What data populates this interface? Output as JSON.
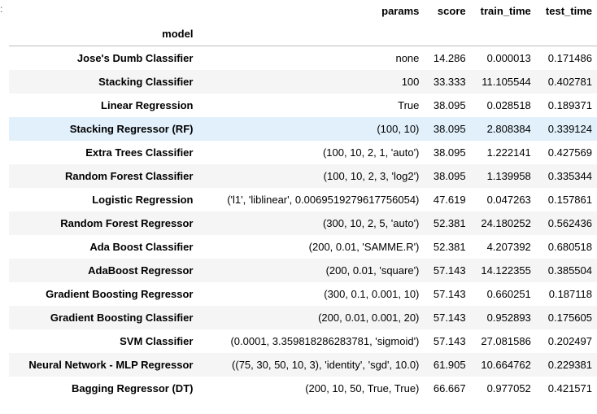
{
  "table": {
    "columns": [
      "params",
      "score",
      "train_time",
      "test_time"
    ],
    "index_name": "model",
    "hovered_row": 3,
    "rows": [
      {
        "model": "Jose's Dumb Classifier",
        "params": "none",
        "score": "14.286",
        "train_time": "0.000013",
        "test_time": "0.171486"
      },
      {
        "model": "Stacking Classifier",
        "params": "100",
        "score": "33.333",
        "train_time": "11.105544",
        "test_time": "0.402781"
      },
      {
        "model": "Linear Regression",
        "params": "True",
        "score": "38.095",
        "train_time": "0.028518",
        "test_time": "0.189371"
      },
      {
        "model": "Stacking Regressor (RF)",
        "params": "(100, 10)",
        "score": "38.095",
        "train_time": "2.808384",
        "test_time": "0.339124"
      },
      {
        "model": "Extra Trees Classifier",
        "params": "(100, 10, 2, 1, 'auto')",
        "score": "38.095",
        "train_time": "1.222141",
        "test_time": "0.427569"
      },
      {
        "model": "Random Forest Classifier",
        "params": "(100, 10, 2, 3, 'log2')",
        "score": "38.095",
        "train_time": "1.139958",
        "test_time": "0.335344"
      },
      {
        "model": "Logistic Regression",
        "params": "('l1', 'liblinear', 0.0069519279617756054)",
        "score": "47.619",
        "train_time": "0.047263",
        "test_time": "0.157861"
      },
      {
        "model": "Random Forest Regressor",
        "params": "(300, 10, 2, 5, 'auto')",
        "score": "52.381",
        "train_time": "24.180252",
        "test_time": "0.562436"
      },
      {
        "model": "Ada Boost Classifier",
        "params": "(200, 0.01, 'SAMME.R')",
        "score": "52.381",
        "train_time": "4.207392",
        "test_time": "0.680518"
      },
      {
        "model": "AdaBoost Regressor",
        "params": "(200, 0.01, 'square')",
        "score": "57.143",
        "train_time": "14.122355",
        "test_time": "0.385504"
      },
      {
        "model": "Gradient Boosting Regressor",
        "params": "(300, 0.1, 0.001, 10)",
        "score": "57.143",
        "train_time": "0.660251",
        "test_time": "0.187118"
      },
      {
        "model": "Gradient Boosting Classifier",
        "params": "(200, 0.01, 0.001, 20)",
        "score": "57.143",
        "train_time": "0.952893",
        "test_time": "0.175605"
      },
      {
        "model": "SVM Classifier",
        "params": "(0.0001, 3.359818286283781, 'sigmoid')",
        "score": "57.143",
        "train_time": "27.081586",
        "test_time": "0.202497"
      },
      {
        "model": "Neural Network - MLP Regressor",
        "params": "((75, 30, 50, 10, 3), 'identity', 'sgd', 10.0)",
        "score": "61.905",
        "train_time": "10.664762",
        "test_time": "0.229381"
      },
      {
        "model": "Bagging Regressor (DT)",
        "params": "(200, 10, 50, True, True)",
        "score": "66.667",
        "train_time": "0.977052",
        "test_time": "0.421571"
      }
    ]
  }
}
